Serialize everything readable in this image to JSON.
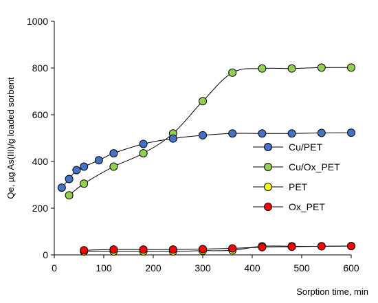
{
  "chart_data": {
    "type": "line",
    "title": "",
    "xlabel": "Sorption time, min",
    "ylabel": "Qe, µg As(III)/g loaded sorbent",
    "xlim": [
      0,
      600
    ],
    "ylim": [
      0,
      1000
    ],
    "xticks": [
      0,
      100,
      200,
      300,
      400,
      500,
      600
    ],
    "yticks": [
      0,
      200,
      400,
      600,
      800,
      1000
    ],
    "grid": false,
    "legend_position": "right",
    "series": [
      {
        "name": "Cu/PET",
        "color": "#4472C4",
        "x": [
          15,
          30,
          45,
          60,
          90,
          120,
          180,
          240,
          300,
          360,
          420,
          480,
          540,
          600
        ],
        "y": [
          288,
          325,
          363,
          378,
          405,
          435,
          475,
          498,
          512,
          520,
          520,
          520,
          522,
          523
        ]
      },
      {
        "name": "Cu/Ox_PET",
        "color": "#92D050",
        "x": [
          30,
          60,
          120,
          180,
          240,
          300,
          360,
          420,
          480,
          540,
          600
        ],
        "y": [
          255,
          305,
          378,
          435,
          520,
          658,
          780,
          798,
          798,
          802,
          802
        ]
      },
      {
        "name": "PET",
        "color": "#FFFF00",
        "x": [
          60,
          120,
          180,
          240,
          300,
          360,
          420,
          480,
          540,
          600
        ],
        "y": [
          15,
          15,
          15,
          15,
          18,
          20,
          37,
          37,
          37,
          38
        ]
      },
      {
        "name": "Ox_PET",
        "color": "#FF0000",
        "x": [
          60,
          120,
          180,
          240,
          300,
          360,
          420,
          480,
          540,
          600
        ],
        "y": [
          20,
          23,
          23,
          23,
          25,
          28,
          33,
          35,
          37,
          38
        ]
      }
    ]
  }
}
